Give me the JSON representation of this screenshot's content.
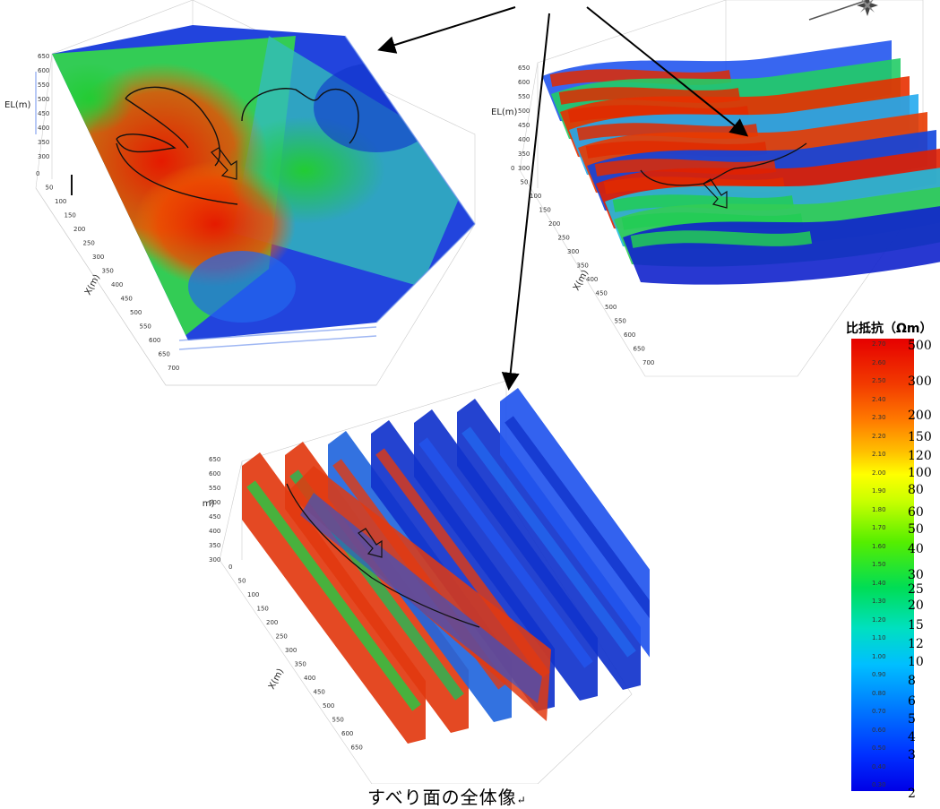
{
  "panels": {
    "top_left": {
      "axis_el": "EL(m)",
      "axis_x": "X(m)",
      "el_ticks": [
        "650",
        "600",
        "550",
        "500",
        "450",
        "400",
        "350",
        "300"
      ],
      "x_ticks": [
        "0",
        "50",
        "100",
        "150",
        "200",
        "250",
        "300",
        "350",
        "400",
        "450",
        "500",
        "550",
        "600",
        "650",
        "700"
      ]
    },
    "top_right": {
      "axis_el": "EL(m)",
      "axis_x": "X(m)",
      "el_ticks": [
        "650",
        "600",
        "550",
        "500",
        "450",
        "400",
        "350",
        "300"
      ],
      "x_ticks": [
        "0",
        "50",
        "100",
        "150",
        "200",
        "250",
        "300",
        "350",
        "400",
        "450",
        "500",
        "550",
        "600",
        "650",
        "700"
      ]
    },
    "bottom": {
      "axis_el": "EL(m)",
      "axis_x": "X(m)",
      "el_ticks": [
        "650",
        "600",
        "550",
        "500",
        "450",
        "400",
        "350",
        "300"
      ],
      "x_ticks": [
        "0",
        "50",
        "100",
        "150",
        "200",
        "250",
        "300",
        "350",
        "400",
        "450",
        "500",
        "550",
        "600",
        "650"
      ]
    }
  },
  "legend": {
    "title": "比抵抗（Ωm）",
    "small_labels": [
      "2.70",
      "2.60",
      "2.50",
      "2.40",
      "2.30",
      "2.20",
      "2.10",
      "2.00",
      "1.90",
      "1.80",
      "1.70",
      "1.60",
      "1.50",
      "1.40",
      "1.30",
      "1.20",
      "1.10",
      "1.00",
      "0.90",
      "0.80",
      "0.70",
      "0.60",
      "0.50",
      "0.40",
      "0.30"
    ],
    "big_labels": [
      "500",
      "300",
      "200",
      "150",
      "120",
      "100",
      "80",
      "60",
      "50",
      "40",
      "30",
      "25",
      "20",
      "15",
      "12",
      "10",
      "8",
      "6",
      "5",
      "4",
      "3",
      "2"
    ],
    "colors": {
      "high": "#e60000",
      "mid": "#ffff00",
      "low": "#0000e6"
    }
  },
  "caption": "すべり面の全体像",
  "icons": {
    "compass": "compass-star-icon",
    "return": "return-arrow-icon"
  }
}
